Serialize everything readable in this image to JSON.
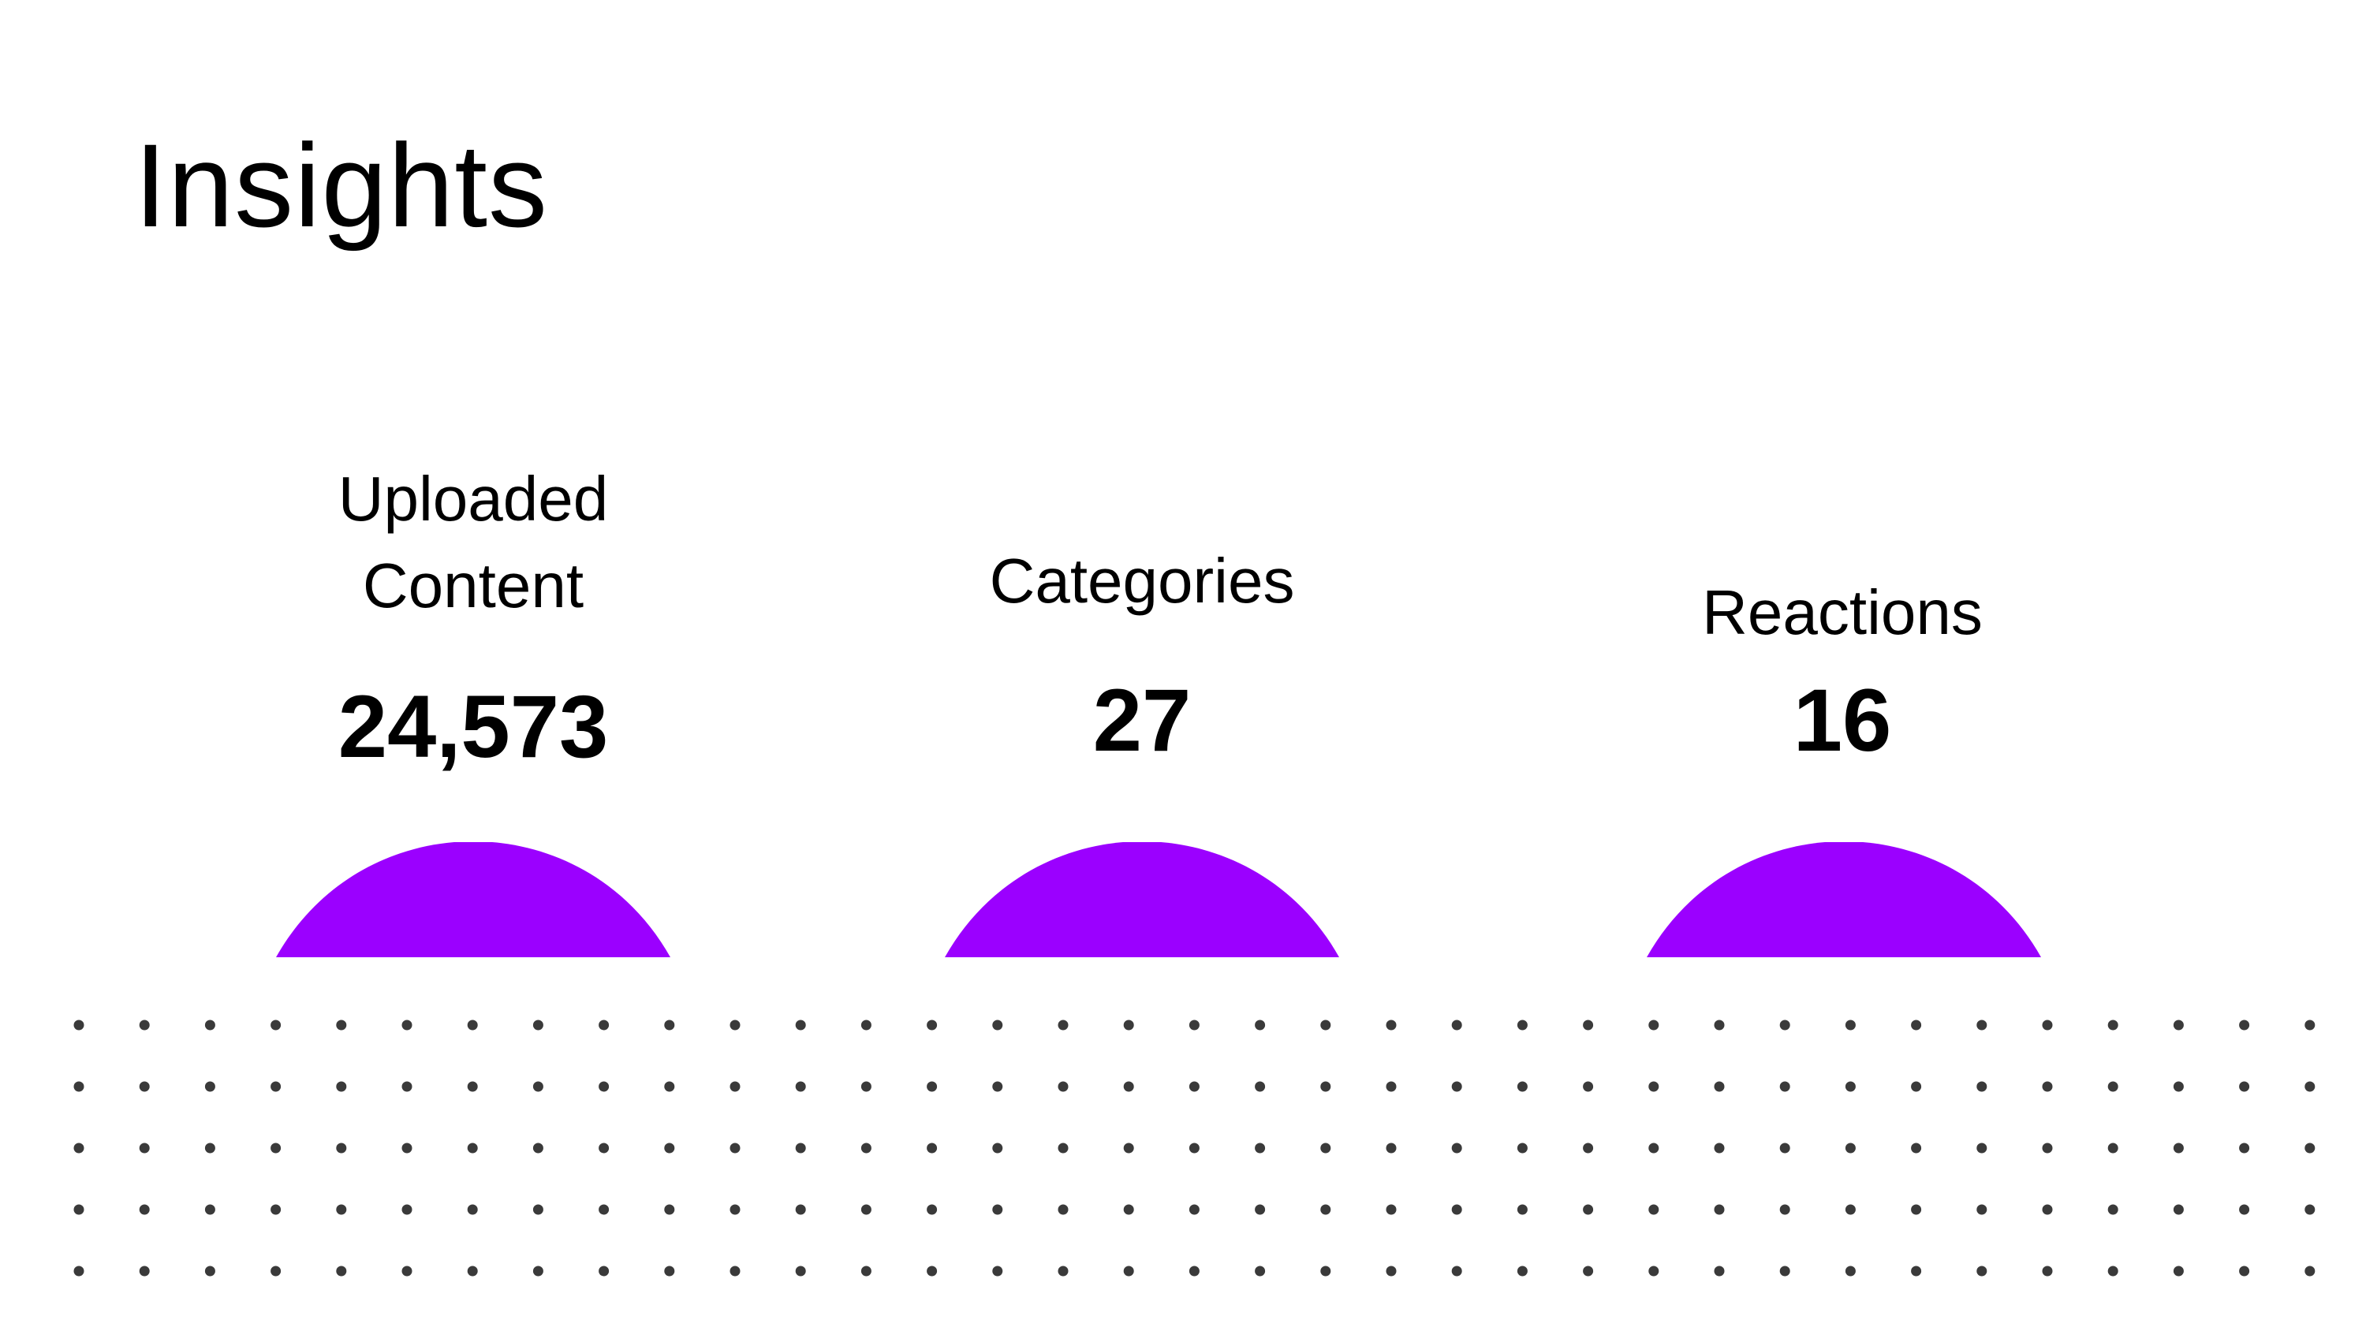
{
  "slide": {
    "title": "Insights"
  },
  "stats": [
    {
      "label_line1": "Uploaded",
      "label_line2": "Content",
      "value": "24,573"
    },
    {
      "label": "Categories",
      "value": "27"
    },
    {
      "label": "Reactions",
      "value": "16"
    }
  ],
  "colors": {
    "accent": "#9b00ff",
    "dots": "#3a3a3a",
    "background": "#ffffff",
    "text": "#000000"
  }
}
